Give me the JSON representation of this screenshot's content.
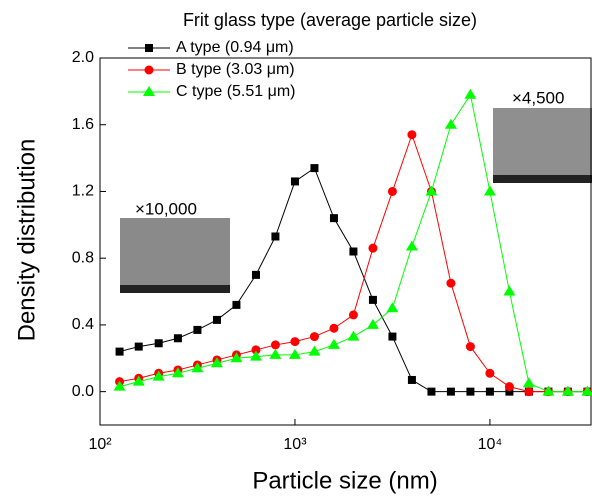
{
  "chart_data": {
    "type": "line",
    "log_x": true,
    "legend_title": "Frit glass type (average particle size)",
    "x_label": "Particle size (nm)",
    "y_label": "Density distribution",
    "annotations": [
      "×10,000",
      "×4,500"
    ],
    "x": [
      126,
      158,
      200,
      251,
      316,
      398,
      501,
      631,
      794,
      1000,
      1259,
      1585,
      1995,
      2512,
      3162,
      3981,
      5012,
      6310,
      7943,
      10000,
      12589,
      15849,
      19953,
      25119,
      31623
    ],
    "series": [
      {
        "name": "A type (0.94 μm)",
        "color": "#000000",
        "marker": "square",
        "values": [
          0.24,
          0.27,
          0.29,
          0.32,
          0.37,
          0.43,
          0.52,
          0.7,
          0.93,
          1.26,
          1.34,
          1.04,
          0.84,
          0.55,
          0.33,
          0.07,
          0,
          0,
          0,
          0,
          0,
          0,
          0,
          0,
          0
        ]
      },
      {
        "name": "B type (3.03 μm)",
        "color": "#ff0000",
        "marker": "circle",
        "values": [
          0.06,
          0.08,
          0.11,
          0.13,
          0.16,
          0.19,
          0.22,
          0.25,
          0.28,
          0.3,
          0.33,
          0.38,
          0.46,
          0.86,
          1.2,
          1.54,
          1.2,
          0.65,
          0.27,
          0.11,
          0.03,
          0,
          0,
          0,
          0
        ]
      },
      {
        "name": "C type (5.51 μm)",
        "color": "#00ff00",
        "marker": "triangle",
        "values": [
          0.03,
          0.06,
          0.09,
          0.11,
          0.14,
          0.17,
          0.2,
          0.21,
          0.22,
          0.22,
          0.24,
          0.28,
          0.33,
          0.4,
          0.5,
          0.87,
          1.2,
          1.6,
          1.78,
          1.2,
          0.6,
          0.05,
          0,
          0,
          0
        ]
      }
    ],
    "xlim": [
      100,
      33000
    ],
    "ylim": [
      -0.2,
      2.0
    ],
    "xticks": [
      {
        "value": 100,
        "label": "10²"
      },
      {
        "value": 1000,
        "label": "10³"
      },
      {
        "value": 10000,
        "label": "10⁴"
      }
    ],
    "yticks": [
      {
        "value": 0,
        "label": "0.0"
      },
      {
        "value": 0.4,
        "label": "0.4"
      },
      {
        "value": 0.8,
        "label": "0.8"
      },
      {
        "value": 1.2,
        "label": "1.2"
      },
      {
        "value": 1.6,
        "label": "1.6"
      },
      {
        "value": 2.0,
        "label": "2.0"
      }
    ]
  }
}
